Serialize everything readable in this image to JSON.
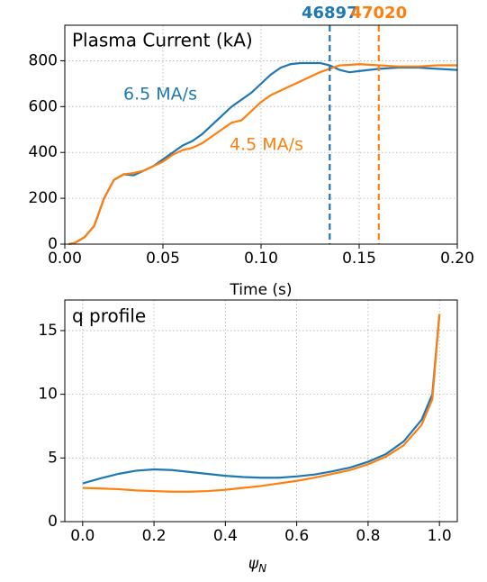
{
  "chart_data": [
    {
      "type": "line",
      "title": "Plasma Current (kA)",
      "xlabel": "Time (s)",
      "x": [
        0.002,
        0.005,
        0.01,
        0.015,
        0.02,
        0.025,
        0.03,
        0.035,
        0.04,
        0.045,
        0.05,
        0.055,
        0.06,
        0.065,
        0.07,
        0.075,
        0.08,
        0.085,
        0.09,
        0.095,
        0.1,
        0.105,
        0.11,
        0.115,
        0.12,
        0.125,
        0.13,
        0.135,
        0.14,
        0.145,
        0.15,
        0.16,
        0.17,
        0.18,
        0.19,
        0.2
      ],
      "series": [
        {
          "name": "6.5 MA/s",
          "color": "#1f77b4",
          "values": [
            0,
            5,
            30,
            80,
            200,
            280,
            305,
            300,
            320,
            340,
            370,
            400,
            430,
            450,
            480,
            520,
            560,
            600,
            630,
            660,
            700,
            740,
            770,
            785,
            790,
            790,
            790,
            780,
            760,
            750,
            755,
            765,
            770,
            770,
            765,
            760
          ]
        },
        {
          "name": "4.5 MA/s",
          "color": "#ff7f0e",
          "values": [
            0,
            5,
            30,
            80,
            200,
            280,
            305,
            310,
            320,
            340,
            360,
            390,
            410,
            420,
            440,
            470,
            500,
            530,
            540,
            580,
            620,
            650,
            670,
            690,
            710,
            730,
            750,
            765,
            780,
            782,
            785,
            780,
            775,
            775,
            780,
            780
          ]
        }
      ],
      "vlines": [
        {
          "x": 0.135,
          "label": "46897",
          "color": "#1f77b4"
        },
        {
          "x": 0.16,
          "label": "47020",
          "color": "#ff7f0e"
        }
      ],
      "xlim": [
        0,
        0.2
      ],
      "xticks": [
        {
          "value": 0,
          "label": "0.00"
        },
        {
          "value": 0.05,
          "label": "0.05"
        },
        {
          "value": 0.1,
          "label": "0.10"
        },
        {
          "value": 0.15,
          "label": "0.15"
        },
        {
          "value": 0.2,
          "label": "0.20"
        }
      ],
      "ylim": [
        0,
        955
      ],
      "yticks": [
        0,
        200,
        400,
        600,
        800
      ],
      "grid": true
    },
    {
      "type": "line",
      "title": "q profile",
      "xlabel": "ψ",
      "xlabel_subscript": "N",
      "x": [
        0,
        0.05,
        0.1,
        0.15,
        0.2,
        0.25,
        0.3,
        0.35,
        0.4,
        0.45,
        0.5,
        0.55,
        0.6,
        0.65,
        0.7,
        0.75,
        0.8,
        0.85,
        0.9,
        0.95,
        0.98,
        1.0
      ],
      "series": [
        {
          "color": "#1f77b4",
          "values": [
            3.0,
            3.4,
            3.75,
            4.0,
            4.1,
            4.05,
            3.9,
            3.75,
            3.6,
            3.5,
            3.45,
            3.45,
            3.55,
            3.7,
            3.95,
            4.25,
            4.7,
            5.3,
            6.3,
            8.0,
            10.0,
            16.3
          ]
        },
        {
          "color": "#ff7f0e",
          "values": [
            2.65,
            2.6,
            2.55,
            2.45,
            2.4,
            2.35,
            2.35,
            2.4,
            2.5,
            2.65,
            2.8,
            3.0,
            3.2,
            3.45,
            3.75,
            4.05,
            4.5,
            5.1,
            6.0,
            7.6,
            9.6,
            16.3
          ]
        }
      ],
      "xlim": [
        -0.05,
        1.05
      ],
      "xticks": [
        {
          "value": 0,
          "label": "0.0"
        },
        {
          "value": 0.2,
          "label": "0.2"
        },
        {
          "value": 0.4,
          "label": "0.4"
        },
        {
          "value": 0.6,
          "label": "0.6"
        },
        {
          "value": 0.8,
          "label": "0.8"
        },
        {
          "value": 1,
          "label": "1.0"
        }
      ],
      "ylim": [
        0,
        17.4
      ],
      "yticks": [
        0,
        5,
        10,
        15
      ],
      "grid": true
    }
  ]
}
